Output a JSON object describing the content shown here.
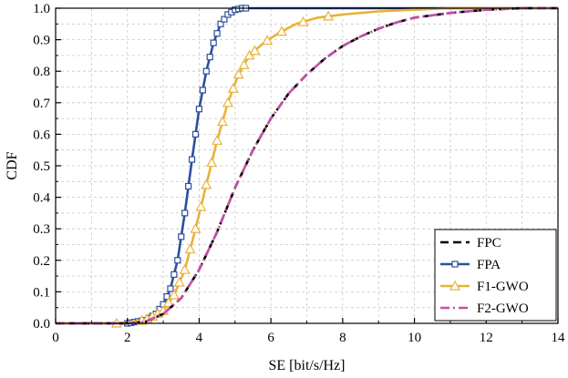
{
  "chart_data": {
    "type": "line",
    "title": "",
    "xlabel": "SE [bit/s/Hz]",
    "ylabel": "CDF",
    "xlim": [
      0,
      14
    ],
    "ylim": [
      0,
      1
    ],
    "xticks": [
      0,
      2,
      4,
      6,
      8,
      10,
      12,
      14
    ],
    "yticks": [
      0.0,
      0.1,
      0.2,
      0.3,
      0.4,
      0.5,
      0.6,
      0.7,
      0.8,
      0.9,
      1.0
    ],
    "xtick_labels": [
      "0",
      "2",
      "4",
      "6",
      "8",
      "10",
      "12",
      "14"
    ],
    "ytick_labels": [
      "0.0",
      "0.1",
      "0.2",
      "0.3",
      "0.4",
      "0.5",
      "0.6",
      "0.7",
      "0.8",
      "0.9",
      "1.0"
    ],
    "grid": true,
    "legend_position": "bottom-right",
    "series": [
      {
        "name": "FPC",
        "color": "#000000",
        "style": "dashed",
        "marker": "none",
        "x": [
          0,
          2.0,
          2.5,
          3.0,
          3.5,
          4.0,
          4.5,
          5.0,
          5.5,
          6.0,
          6.5,
          7.0,
          7.5,
          8.0,
          8.5,
          9.0,
          9.5,
          10.0,
          11.0,
          12.0,
          13.0,
          14.0
        ],
        "y": [
          0,
          0.0,
          0.005,
          0.03,
          0.08,
          0.17,
          0.29,
          0.43,
          0.55,
          0.65,
          0.73,
          0.79,
          0.84,
          0.88,
          0.91,
          0.935,
          0.955,
          0.97,
          0.985,
          0.995,
          1.0,
          1.0
        ]
      },
      {
        "name": "FPA",
        "color": "#2d4fa0",
        "style": "solid",
        "marker": "square",
        "x": [
          0,
          2.0,
          2.5,
          2.8,
          3.0,
          3.2,
          3.4,
          3.6,
          3.8,
          4.0,
          4.2,
          4.4,
          4.6,
          4.8,
          5.0,
          5.2,
          5.4,
          14.0
        ],
        "y": [
          0,
          0.0,
          0.01,
          0.03,
          0.06,
          0.11,
          0.2,
          0.35,
          0.52,
          0.68,
          0.8,
          0.89,
          0.95,
          0.98,
          0.995,
          1.0,
          1.0,
          1.0
        ]
      },
      {
        "name": "F1-GWO",
        "color": "#e8b23a",
        "style": "solid",
        "marker": "triangle",
        "x": [
          0,
          1.7,
          2.5,
          3.0,
          3.3,
          3.6,
          3.9,
          4.2,
          4.5,
          4.8,
          5.1,
          5.4,
          5.8,
          6.2,
          6.7,
          7.3,
          8.0,
          9.0,
          10.0,
          11.0,
          12.0,
          13.0,
          14.0
        ],
        "y": [
          0,
          0.0,
          0.01,
          0.04,
          0.09,
          0.17,
          0.3,
          0.44,
          0.58,
          0.7,
          0.79,
          0.85,
          0.89,
          0.92,
          0.95,
          0.97,
          0.98,
          0.99,
          0.995,
          1.0,
          1.0,
          1.0,
          1.0
        ]
      },
      {
        "name": "F2-GWO",
        "color": "#c24fa7",
        "style": "dashdot",
        "marker": "none",
        "x": [
          0,
          2.0,
          2.5,
          3.0,
          3.5,
          4.0,
          4.5,
          5.0,
          5.5,
          6.0,
          6.5,
          7.0,
          7.5,
          8.0,
          8.5,
          9.0,
          9.5,
          10.0,
          11.0,
          12.0,
          13.0,
          14.0
        ],
        "y": [
          0,
          0.0,
          0.005,
          0.03,
          0.08,
          0.17,
          0.29,
          0.43,
          0.55,
          0.65,
          0.73,
          0.79,
          0.84,
          0.88,
          0.91,
          0.935,
          0.955,
          0.97,
          0.985,
          0.995,
          1.0,
          1.0
        ]
      }
    ]
  }
}
